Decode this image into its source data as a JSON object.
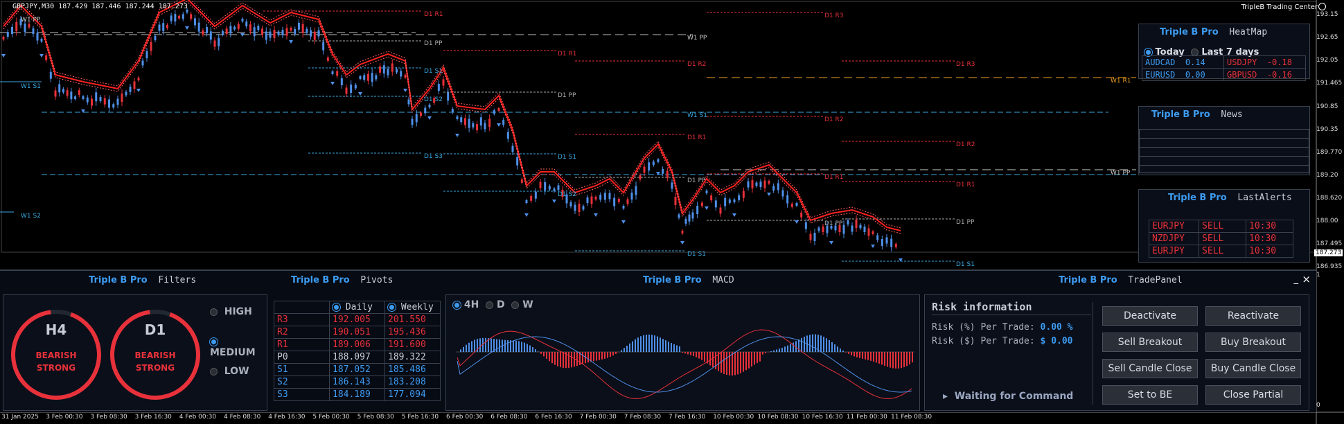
{
  "symbol_line": "GBPJPY,M30  187.429 187.446 187.244 187.273",
  "brand": "TripleB Trading Center",
  "price_axis": [
    "193.15",
    "192.65",
    "192.05",
    "191.465",
    "190.85",
    "190.35",
    "189.770",
    "189.20",
    "188.620",
    "188.00",
    "187.495",
    "186.935"
  ],
  "current_price": "187.273",
  "time_axis": [
    "31 Jan 2025",
    "3 Feb 00:30",
    "3 Feb 08:30",
    "3 Feb 16:30",
    "4 Feb 00:30",
    "4 Feb 08:30",
    "4 Feb 16:30",
    "5 Feb 00:30",
    "5 Feb 08:30",
    "5 Feb 16:30",
    "6 Feb 00:30",
    "6 Feb 08:30",
    "6 Feb 16:30",
    "7 Feb 00:30",
    "7 Feb 08:30",
    "7 Feb 16:30",
    "10 Feb 00:30",
    "10 Feb 08:30",
    "10 Feb 16:30",
    "11 Feb 00:30",
    "11 Feb 08:30"
  ],
  "levels": {
    "w1_pp": "W1 PP",
    "w1_s1": "W1 S1",
    "w1_s2": "W1 S2",
    "w1_r1": "W1 R1",
    "d1_r1": "D1 R1",
    "d1_r2": "D1 R2",
    "d1_r3": "D1 R3",
    "d1_pp": "D1 PP",
    "d1_s1": "D1 S1",
    "d1_s2": "D1 S2",
    "d1_s3": "D1 S3"
  },
  "heatmap": {
    "brand": "Triple B Pro",
    "title": "HeatMap",
    "opt_today": "Today",
    "opt_last7": "Last 7 days",
    "cells": [
      {
        "pair": "AUDCAD",
        "val": "0.14",
        "color": "#3d9bf0"
      },
      {
        "pair": "USDJPY",
        "val": "-0.18",
        "color": "#e8313a"
      },
      {
        "pair": "EURUSD",
        "val": "0.00",
        "color": "#3d9bf0"
      },
      {
        "pair": "GBPUSD",
        "val": "-0.16",
        "color": "#e8313a"
      }
    ]
  },
  "news": {
    "brand": "Triple B Pro",
    "title": "News"
  },
  "alerts": {
    "brand": "Triple B Pro",
    "title": "LastAlerts",
    "rows": [
      {
        "pair": "EURJPY",
        "side": "SELL",
        "time": "10:30"
      },
      {
        "pair": "NZDJPY",
        "side": "SELL",
        "time": "10:30"
      },
      {
        "pair": "EURJPY",
        "side": "SELL",
        "time": "10:30"
      }
    ]
  },
  "filters": {
    "brand": "Triple B Pro",
    "title": "Filters",
    "gauges": [
      {
        "tf": "H4",
        "state1": "BEARISH",
        "state2": "STRONG"
      },
      {
        "tf": "D1",
        "state1": "BEARISH",
        "state2": "STRONG"
      }
    ],
    "options": [
      "HIGH",
      "MEDIUM",
      "LOW"
    ],
    "selected": "MEDIUM"
  },
  "pivots": {
    "brand": "Triple B Pro",
    "title": "Pivots",
    "col_daily": "Daily",
    "col_weekly": "Weekly",
    "rows": [
      {
        "name": "R3",
        "daily": "192.005",
        "weekly": "201.550"
      },
      {
        "name": "R2",
        "daily": "190.051",
        "weekly": "195.436"
      },
      {
        "name": "R1",
        "daily": "189.006",
        "weekly": "191.600"
      },
      {
        "name": "P0",
        "daily": "188.097",
        "weekly": "189.322"
      },
      {
        "name": "S1",
        "daily": "187.052",
        "weekly": "185.486"
      },
      {
        "name": "S2",
        "daily": "186.143",
        "weekly": "183.208"
      },
      {
        "name": "S3",
        "daily": "184.189",
        "weekly": "177.094"
      }
    ]
  },
  "macd": {
    "brand": "Triple B Pro",
    "title": "MACD",
    "timeframes": [
      "4H",
      "D",
      "W"
    ],
    "selected": "4H"
  },
  "trade": {
    "brand": "Triple B Pro",
    "title": "TradePanel",
    "risk_title": "Risk information",
    "risk_pct_label": "Risk (%) Per Trade:",
    "risk_pct_value": "0.00 %",
    "risk_usd_label": "Risk ($) Per Trade:",
    "risk_usd_value": "$ 0.00",
    "status": "Waiting for Command",
    "buttons": [
      "Deactivate",
      "Reactivate",
      "Sell Breakout",
      "Buy Breakout",
      "Sell Candle Close",
      "Buy Candle Close",
      "Set to BE",
      "Close Partial"
    ]
  },
  "subwindow_axis": [
    "1",
    "0"
  ],
  "window_controls": {
    "minimize": "_",
    "close": "×"
  }
}
